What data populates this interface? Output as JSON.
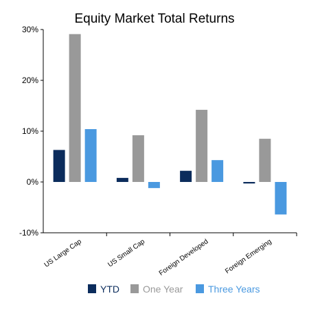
{
  "chart_data": {
    "type": "bar",
    "title": "Equity Market Total Returns",
    "xlabel": "",
    "ylabel": "",
    "categories": [
      "US Large Cap",
      "US Small Cap",
      "Foreign Developed",
      "Foreign Emerging"
    ],
    "series": [
      {
        "name": "YTD",
        "color": "#0b2c5c",
        "values": [
          6.3,
          0.8,
          2.2,
          -0.3
        ]
      },
      {
        "name": "One Year",
        "color": "#999999",
        "values": [
          29.1,
          9.2,
          14.2,
          8.5
        ]
      },
      {
        "name": "Three Years",
        "color": "#4a99e0",
        "values": [
          10.4,
          -1.2,
          4.3,
          -6.4
        ]
      }
    ],
    "ylim": [
      -10,
      30
    ],
    "yticks": [
      -10,
      0,
      10,
      20,
      30
    ],
    "ytick_labels": [
      "-10%",
      "0%",
      "10%",
      "20%",
      "30%"
    ],
    "grid": false,
    "legend_position": "bottom"
  }
}
